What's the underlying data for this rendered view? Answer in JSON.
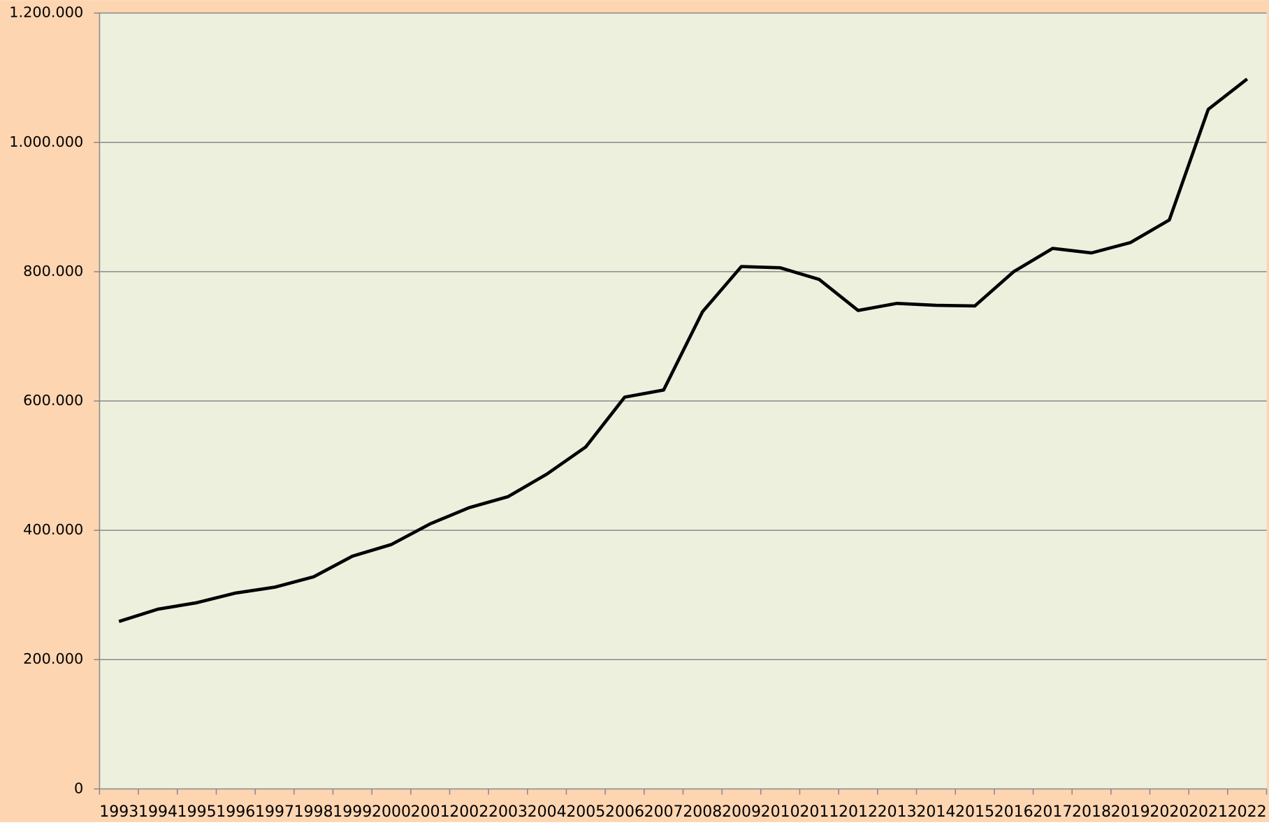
{
  "chart_data": {
    "type": "line",
    "categories": [
      "1993",
      "1994",
      "1995",
      "1996",
      "1997",
      "1998",
      "1999",
      "2000",
      "2001",
      "2002",
      "2003",
      "2004",
      "2005",
      "2006",
      "2007",
      "2008",
      "2009",
      "2010",
      "2011",
      "2012",
      "2013",
      "2014",
      "2015",
      "2016",
      "2017",
      "2018",
      "2019",
      "2020",
      "2021",
      "2022"
    ],
    "series": [
      {
        "color": "#000000",
        "values": [
          259000,
          278000,
          288000,
          303000,
          312000,
          328000,
          360000,
          378000,
          410000,
          435000,
          452000,
          487000,
          529000,
          606000,
          617000,
          738000,
          808000,
          806000,
          788000,
          740000,
          751000,
          748000,
          747000,
          800000,
          836000,
          829000,
          845000,
          880000,
          1051000,
          1098000
        ]
      }
    ],
    "ylim": [
      0,
      1200000
    ],
    "yticks": [
      0,
      {
        "value": 200000,
        "label": "200.000"
      },
      {
        "value": 400000,
        "label": "400.000"
      },
      {
        "value": 600000,
        "label": "600.000"
      },
      {
        "value": 800000,
        "label": "800.000"
      },
      {
        "value": 1000000,
        "label": "1.000.000"
      },
      {
        "value": 1200000,
        "label": "1.200.000"
      }
    ],
    "grid": true,
    "background": "#fdd5b1",
    "plot_background": "#eef0de"
  }
}
